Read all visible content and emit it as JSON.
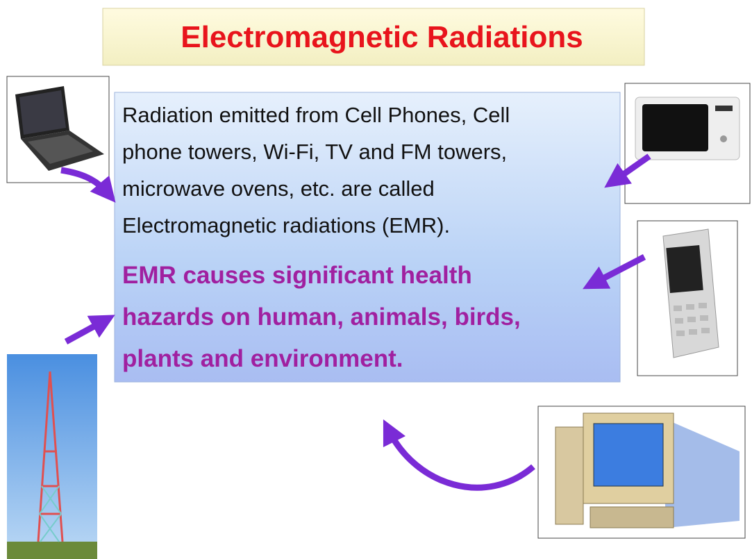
{
  "header": {
    "title": "Electromagnetic Radiations"
  },
  "body": {
    "intro_lines": [
      "Radiation emitted from Cell Phones, Cell",
      "phone towers, Wi-Fi, TV and FM towers,",
      "microwave ovens, etc. are called",
      "Electromagnetic radiations (EMR)."
    ],
    "warning_lines": [
      "EMR causes significant health",
      "hazards on human, animals, birds,",
      "plants and environment."
    ]
  }
}
